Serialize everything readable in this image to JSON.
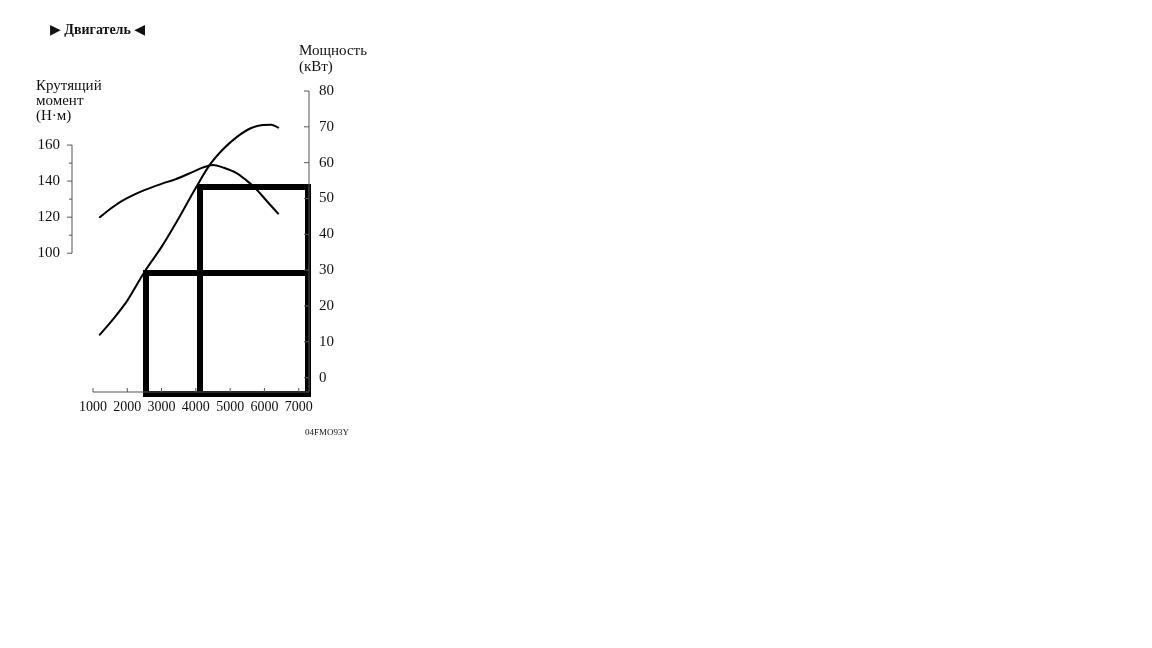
{
  "chart_data": {
    "type": "line",
    "title": "▶ Двигатель ◀",
    "ylabel": "Крутящий\nмомент\n(Н·м)",
    "y2label": "Мощность\n(кВт)",
    "annotations": [
      "04FMO93Y"
    ],
    "series": [
      {
        "color": "#000000",
        "x": [
          1200,
          1500,
          1800,
          2200,
          2500,
          3000,
          3400,
          3900,
          4200,
          4500,
          4800,
          5200,
          5500,
          5700,
          6100,
          6400
        ],
        "values": [
          120,
          124.5,
          128.5,
          132.5,
          135,
          138.5,
          141,
          145,
          147.5,
          149,
          147.5,
          144.3,
          140,
          136.8,
          128.3,
          122
        ]
      },
      {
        "color": "#000000",
        "axis": "y2",
        "x": [
          1200,
          1600,
          2000,
          2500,
          3000,
          3500,
          4000,
          4400,
          4800,
          5200,
          5600,
          5950,
          6200,
          6400
        ],
        "values": [
          12,
          16.5,
          21.5,
          29.5,
          36.5,
          44.5,
          53,
          59.3,
          63.8,
          67.2,
          69.6,
          70.5,
          70.6,
          69.8
        ]
      }
    ],
    "xlim": [
      1000,
      7300
    ],
    "xticks": [
      1000,
      2000,
      3000,
      4000,
      5000,
      6000,
      7000
    ],
    "ylim": [
      23,
      190
    ],
    "yticks": [
      100,
      {
        "value": 110,
        "label": null
      },
      120,
      {
        "value": 130,
        "label": null
      },
      140,
      {
        "value": 150,
        "label": null
      },
      160
    ],
    "y2lim": [
      -4,
      80
    ],
    "y2ticks": [
      0,
      10,
      20,
      30,
      40,
      50,
      60,
      70,
      80
    ],
    "grid": false,
    "legend": false,
    "marker": "none",
    "line_style": "solid"
  }
}
